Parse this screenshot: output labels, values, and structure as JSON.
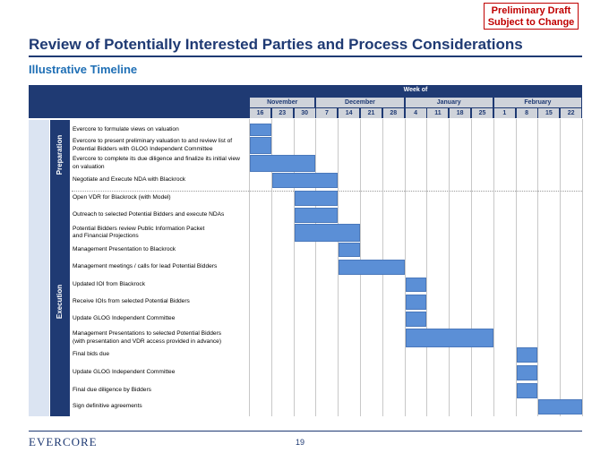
{
  "stamp": {
    "line1": "Preliminary Draft",
    "line2": "Subject to Change"
  },
  "title": "Review of Potentially Interested Parties and Process Considerations",
  "subtitle": "Illustrative Timeline",
  "week_of_label": "Week of",
  "months": [
    {
      "name": "November",
      "start": 0,
      "span": 3
    },
    {
      "name": "December",
      "start": 3,
      "span": 4
    },
    {
      "name": "January",
      "start": 7,
      "span": 4
    },
    {
      "name": "February",
      "start": 11,
      "span": 4
    }
  ],
  "weeks": [
    "16",
    "23",
    "30",
    "7",
    "14",
    "21",
    "28",
    "4",
    "11",
    "18",
    "25",
    "1",
    "8",
    "15",
    "22"
  ],
  "phases": [
    {
      "name": "Preparation",
      "from_task": 0,
      "to_task": 3
    },
    {
      "name": "Execution",
      "from_task": 4,
      "to_task": 15
    }
  ],
  "tasks": [
    {
      "label": "Evercore to formulate views on valuation",
      "start": 0,
      "end": 1
    },
    {
      "label": "Evercore to present preliminary valuation to and review list of\nPotential Bidders with GLOG Independent Committee",
      "start": 0,
      "end": 1
    },
    {
      "label": "Evercore to complete its due diligence and finalize its initial view\non valuation",
      "start": 0,
      "end": 3
    },
    {
      "label": "Negotiate and Execute NDA with Blackrock",
      "start": 1,
      "end": 4
    },
    {
      "label": "Open VDR for Blackrock (with Model)",
      "start": 2,
      "end": 4
    },
    {
      "label": "Outreach to selected Potential Bidders and execute NDAs",
      "start": 2,
      "end": 4
    },
    {
      "label": "Potential Bidders review Public Information Packet\nand Financial Projections",
      "start": 2,
      "end": 5
    },
    {
      "label": "Management Presentation to Blackrock",
      "start": 4,
      "end": 5
    },
    {
      "label": "Management meetings / calls for lead Potential Bidders",
      "start": 4,
      "end": 7
    },
    {
      "label": "Updated IOI from Blackrock",
      "start": 7,
      "end": 8
    },
    {
      "label": "Receive IOIs from selected Potential Bidders",
      "start": 7,
      "end": 8
    },
    {
      "label": "Update GLOG Independent Committee",
      "start": 7,
      "end": 8
    },
    {
      "label": "Management Presentations to selected Potential Bidders\n(with presentation and VDR access provided in advance)",
      "start": 7,
      "end": 11
    },
    {
      "label": "Final bids due",
      "start": 12,
      "end": 13
    },
    {
      "label": "Update GLOG Independent Committee",
      "start": 12,
      "end": 13
    },
    {
      "label": "Final due diligence by Bidders",
      "start": 12,
      "end": 13
    },
    {
      "label": "Sign definitive agreements",
      "start": 13,
      "end": 15
    }
  ],
  "footer": {
    "logo": "EVERCORE",
    "page_number": "19"
  }
}
